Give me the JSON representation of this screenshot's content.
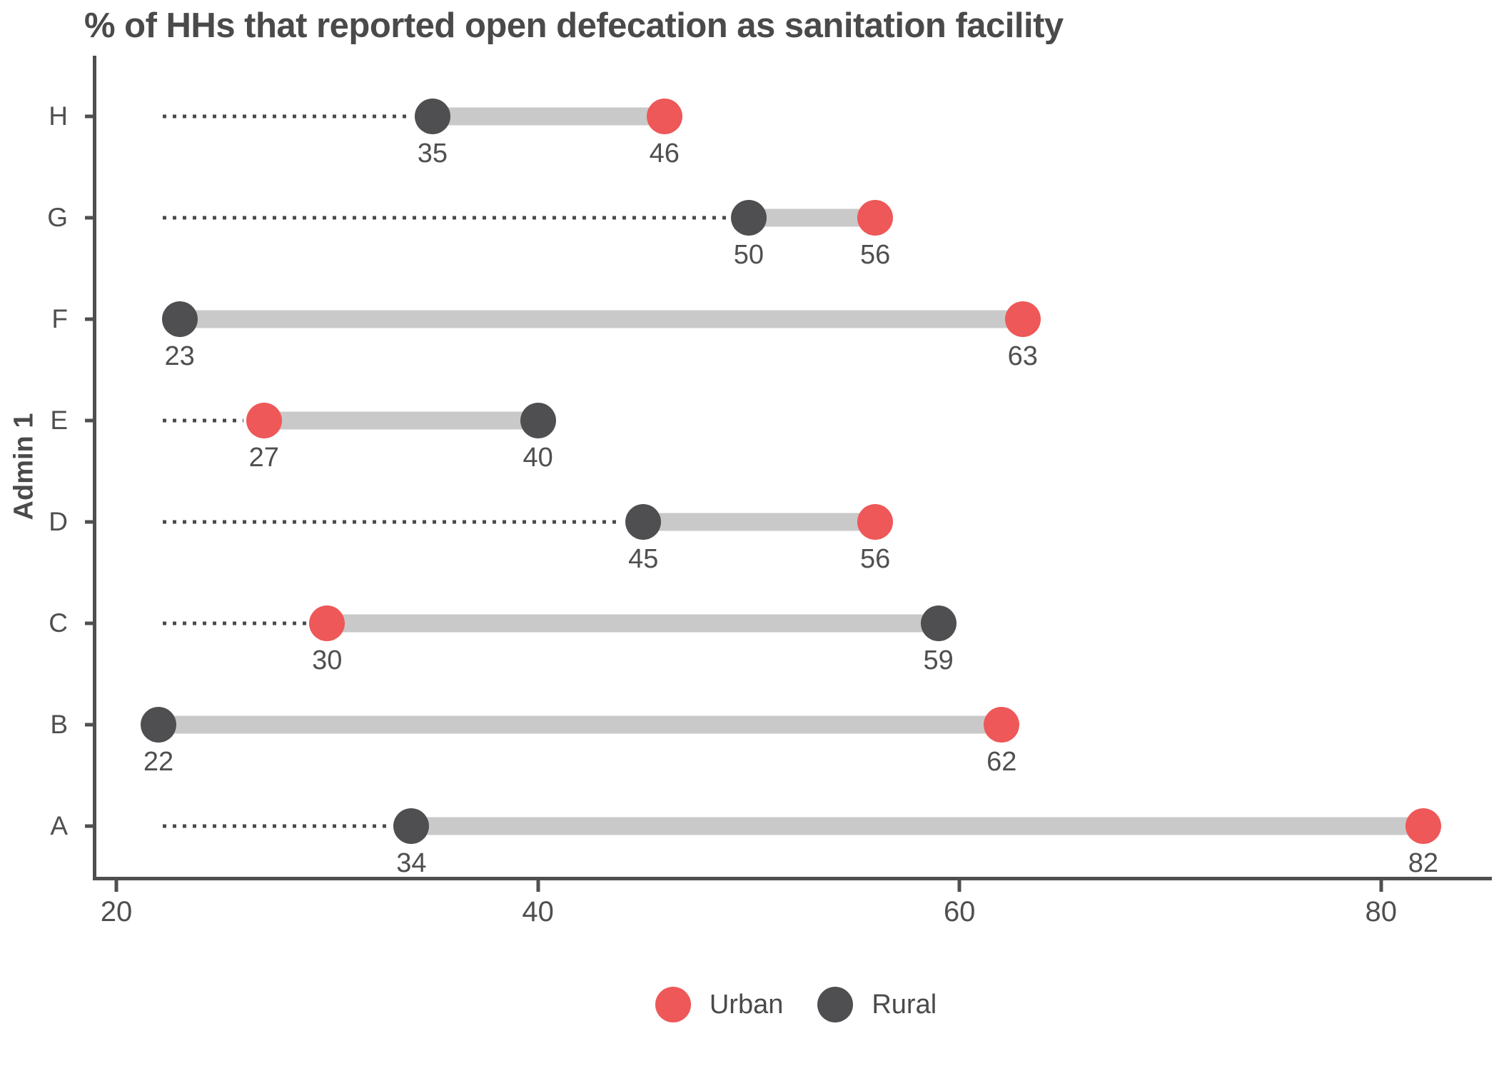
{
  "title": "% of HHs that reported open defecation as sanitation facility",
  "y_axis_label": "Admin 1",
  "colors": {
    "urban": "#ee5859",
    "rural": "#4f4f51",
    "connector": "#c9c9c9",
    "leader": "#4a4a4a",
    "axis": "#4f4f4f",
    "text": "#4a4a4a"
  },
  "legend": [
    {
      "label": "Urban",
      "series": "urban"
    },
    {
      "label": "Rural",
      "series": "rural"
    }
  ],
  "chart_data": {
    "type": "dumbbell",
    "title": "% of HHs that reported open defecation as sanitation facility",
    "xlabel": "",
    "ylabel": "Admin 1",
    "categories": [
      "H",
      "G",
      "F",
      "E",
      "D",
      "C",
      "B",
      "A"
    ],
    "series": [
      {
        "name": "Urban",
        "values": [
          46,
          56,
          63,
          27,
          56,
          30,
          62,
          82
        ]
      },
      {
        "name": "Rural",
        "values": [
          35,
          50,
          23,
          40,
          45,
          59,
          22,
          34
        ]
      }
    ],
    "x_ticks": [
      20,
      40,
      60,
      80
    ],
    "xlim": [
      19,
      85.2
    ],
    "grid": false,
    "legend_position": "bottom",
    "data_labels": true
  }
}
